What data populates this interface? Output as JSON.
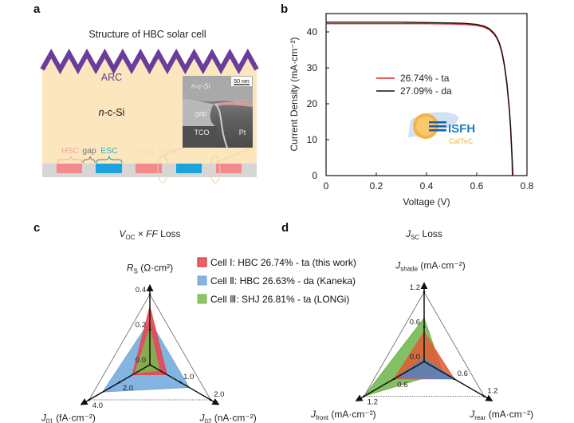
{
  "panel_labels": {
    "a": "a",
    "b": "b",
    "c": "c",
    "d": "d"
  },
  "panel_a": {
    "title": "Structure of HBC solar cell",
    "arc_label": "ARC",
    "bulk_label_italic": "n",
    "bulk_label_rest": "-c-Si",
    "inset": {
      "scale_bar": "50 nm",
      "ncsi": "n-c-Si",
      "hsc": "HSC",
      "gap": "gap",
      "tco": "TCO",
      "pt": "Pt"
    },
    "rear_labels": {
      "hsc": "HSC",
      "gap": "gap",
      "esc": "ESC",
      "hsc_gap": "HSC + gap"
    },
    "colors": {
      "arc": "#6a3d9a",
      "bulk": "#fbe6bd",
      "hsc": "#f28a8c",
      "esc": "#1aa3df",
      "gap": "#d6d6d6"
    }
  },
  "logo": {
    "name": "ISFH",
    "sub": "CalTeC"
  },
  "legend_cells": [
    {
      "label": "Cell Ⅰ: HBC 26.74% - ta (this work)",
      "color": "#e8434a"
    },
    {
      "label": "Cell Ⅱ: HBC 26.63% - da (Kaneka)",
      "color": "#6fa8dc"
    },
    {
      "label": "Cell Ⅲ: SHJ 26.81% - ta (LONGi)",
      "color": "#79bb4e"
    }
  ],
  "chart_data": [
    {
      "type": "line",
      "panel": "b",
      "xlabel": "Voltage (V)",
      "ylabel": "Current Density (mA·cm⁻²)",
      "xlim": [
        0,
        0.8
      ],
      "ylim": [
        0,
        45
      ],
      "xticks": [
        "0",
        "0.2",
        "0.4",
        "0.6",
        "0.8"
      ],
      "yticks": [
        "0",
        "10",
        "20",
        "30",
        "40"
      ],
      "legend": "center-left",
      "series": [
        {
          "name": "26.74% - ta",
          "color": "#d62728",
          "x": [
            0,
            0.1,
            0.2,
            0.3,
            0.4,
            0.5,
            0.55,
            0.6,
            0.63,
            0.65,
            0.67,
            0.68,
            0.69,
            0.7,
            0.71,
            0.72,
            0.73,
            0.735,
            0.74,
            0.742
          ],
          "y": [
            42.3,
            42.3,
            42.3,
            42.3,
            42.3,
            42.2,
            42.1,
            41.8,
            41.3,
            40.6,
            39.3,
            38.2,
            36.6,
            34.2,
            30.6,
            25.4,
            17.8,
            12.8,
            5.2,
            0
          ]
        },
        {
          "name": "27.09% - da",
          "color": "#111111",
          "x": [
            0,
            0.1,
            0.2,
            0.3,
            0.4,
            0.5,
            0.55,
            0.6,
            0.63,
            0.65,
            0.67,
            0.68,
            0.69,
            0.7,
            0.71,
            0.72,
            0.73,
            0.735,
            0.74,
            0.744
          ],
          "y": [
            42.7,
            42.7,
            42.7,
            42.7,
            42.6,
            42.5,
            42.4,
            42.1,
            41.6,
            40.9,
            39.6,
            38.5,
            36.9,
            34.6,
            31.0,
            25.9,
            18.4,
            13.6,
            6.4,
            0
          ]
        }
      ]
    },
    {
      "type": "radar",
      "panel": "c",
      "title": {
        "v": "V",
        "sub": "OC",
        "rest": " × ",
        "ff": "FF",
        "loss": " Loss"
      },
      "axes": [
        {
          "main": "R",
          "sub": "S",
          "unit": " (Ω·cm²)",
          "max": 0.4,
          "ticks": [
            "0.0",
            "0.2",
            "0.4"
          ]
        },
        {
          "main": "J",
          "sub": "01",
          "unit": " (fA·cm⁻²)",
          "max": 4.0,
          "ticks": [
            "2.0",
            "4.0"
          ]
        },
        {
          "main": "J",
          "sub": "02",
          "unit": " (nA·cm⁻²)",
          "max": 2.0,
          "ticks": [
            "1.0",
            "2.0"
          ]
        }
      ],
      "series": [
        {
          "name": "Cell Ⅱ",
          "values": [
            0.25,
            3.1,
            1.29
          ]
        },
        {
          "name": "Cell Ⅰ",
          "values": [
            0.33,
            1.15,
            0.56
          ]
        },
        {
          "name": "Cell Ⅲ",
          "values": [
            0.21,
            0.97,
            0.31
          ]
        }
      ]
    },
    {
      "type": "radar",
      "panel": "d",
      "title": {
        "v": "J",
        "sub": "SC",
        "rest": " Loss"
      },
      "axes": [
        {
          "main": "J",
          "sub": "shade",
          "unit": " (mA·cm⁻²)",
          "max": 1.2,
          "ticks": [
            "0.0",
            "0.6",
            "1.2"
          ]
        },
        {
          "main": "J",
          "sub": "front",
          "unit": " (mA·cm⁻²)",
          "max": 1.2,
          "ticks": [
            "0.6",
            "1.2"
          ]
        },
        {
          "main": "J",
          "sub": "rear",
          "unit": " (mA·cm⁻²)",
          "max": 1.2,
          "ticks": [
            "0.6",
            "1.2"
          ]
        }
      ],
      "series": [
        {
          "name": "Cell Ⅲ",
          "values": [
            0.75,
            1.2,
            0.37
          ]
        },
        {
          "name": "Cell Ⅰ",
          "values": [
            0.51,
            0.6,
            0.6
          ]
        },
        {
          "name": "Cell Ⅱ",
          "values": [
            0.05,
            0.56,
            0.6
          ]
        }
      ]
    }
  ]
}
